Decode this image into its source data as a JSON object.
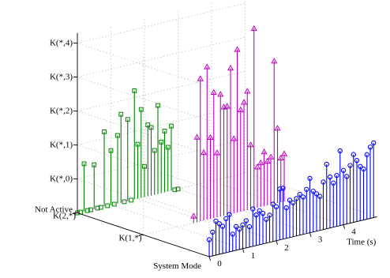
{
  "chart_data": {
    "type": "stem3",
    "title": "",
    "xlabel": "Time (s)",
    "ylabel": "System Mode",
    "zlabel": "",
    "x_ticks": [
      "0",
      "1",
      "2",
      "3",
      "4"
    ],
    "xlim": [
      0,
      5
    ],
    "y_ticks": [
      "K(2,*)",
      "K(1,*)"
    ],
    "z_ticks": [
      "Not Active",
      "K(*,0)",
      "K(*,1)",
      "K(*,2)",
      "K(*,3)",
      "K(*,4)"
    ],
    "zlim": [
      -1,
      4.3
    ],
    "grid": true,
    "series": [
      {
        "mode": "K(2,*)",
        "color": "#008000",
        "marker": "square",
        "x": [
          0.0,
          0.1,
          0.2,
          0.3,
          0.4,
          0.5,
          0.6,
          0.7,
          0.8,
          0.9,
          1.0,
          1.1,
          1.2,
          1.3,
          1.4,
          1.5,
          1.6,
          1.7,
          1.8,
          1.9,
          2.0,
          2.1,
          2.2,
          2.3,
          2.4,
          2.5,
          2.6,
          2.7,
          2.8,
          2.9,
          3.0
        ],
        "z": [
          -1,
          -1,
          0.4,
          -1,
          -1,
          0.3,
          -1,
          -1,
          1.2,
          -1,
          0.6,
          -1,
          1.0,
          1.6,
          -1,
          1.4,
          -1,
          2.2,
          0.6,
          1.6,
          -0.1,
          1.1,
          1.0,
          0.3,
          1.6,
          0.5,
          0.8,
          0.3,
          0.9,
          -1,
          -1
        ]
      },
      {
        "mode": "K(1,*)",
        "color": "#bf00bf",
        "marker": "triangle",
        "x": [
          1.5,
          1.6,
          1.7,
          1.8,
          1.9,
          2.0,
          2.1,
          2.2,
          2.3,
          2.4,
          2.5,
          2.6,
          2.7,
          2.8,
          2.9,
          3.0,
          3.1,
          3.2,
          3.3,
          3.4,
          3.5,
          3.6,
          3.7,
          3.8,
          3.9,
          4.0,
          4.1,
          4.2
        ],
        "z": [
          -0.8,
          1.5,
          3.2,
          1.0,
          3.5,
          1.4,
          2.7,
          0.9,
          2.6,
          2.2,
          2.2,
          3.3,
          1.2,
          3.8,
          2.0,
          2.2,
          2.5,
          0.9,
          4.3,
          0.2,
          0.3,
          0.6,
          0.3,
          0.4,
          3.2,
          1.2,
          0.3,
          0.4
        ]
      },
      {
        "mode": "System Mode",
        "color": "#0000ff",
        "marker": "circle",
        "x": [
          0.0,
          0.1,
          0.2,
          0.3,
          0.4,
          0.5,
          0.6,
          0.7,
          0.8,
          0.9,
          1.0,
          1.1,
          1.2,
          1.3,
          1.4,
          1.5,
          1.6,
          1.7,
          1.8,
          1.9,
          2.0,
          2.1,
          2.2,
          2.3,
          2.4,
          2.5,
          2.6,
          2.7,
          2.8,
          2.9,
          3.0,
          3.1,
          3.2,
          3.3,
          3.4,
          3.5,
          3.6,
          3.7,
          3.8,
          3.9,
          4.0,
          4.1,
          4.2,
          4.3,
          4.4,
          4.5,
          4.6,
          4.7,
          4.8,
          4.9
        ],
        "z": [
          -0.5,
          -0.3,
          0.0,
          -0.1,
          -0.2,
          0.0,
          0.1,
          -0.5,
          -0.3,
          -0.4,
          -0.3,
          -0.2,
          -0.4,
          0.1,
          -0.1,
          0.0,
          -0.1,
          -0.3,
          -0.2,
          0.1,
          0.0,
          0.5,
          0.5,
          -0.1,
          0.1,
          0.0,
          0.1,
          0.2,
          0.1,
          0.3,
          0.6,
          0.2,
          0.1,
          0.0,
          0.4,
          0.9,
          0.5,
          0.3,
          0.5,
          1.2,
          0.6,
          0.4,
          0.7,
          1.0,
          0.8,
          0.6,
          0.5,
          0.9,
          1.1,
          1.2
        ]
      }
    ]
  }
}
